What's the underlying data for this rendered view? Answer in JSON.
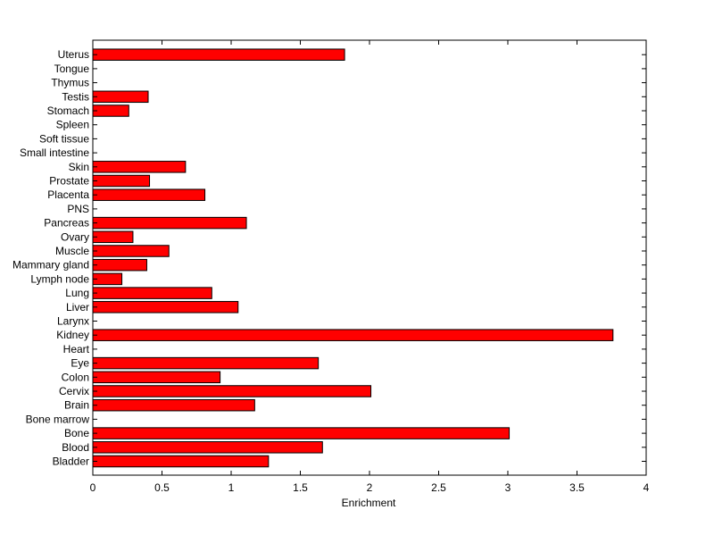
{
  "chart_data": {
    "type": "bar",
    "orientation": "horizontal",
    "title": "",
    "xlabel": "Enrichment",
    "ylabel": "",
    "xlim": [
      0,
      4
    ],
    "xticks": [
      "0",
      "0.5",
      "1",
      "1.5",
      "2",
      "2.5",
      "3",
      "3.5",
      "4"
    ],
    "grid": false,
    "legend": "none",
    "bar_color": "#ff0000",
    "categories": [
      "Bladder",
      "Blood",
      "Bone",
      "Bone marrow",
      "Brain",
      "Cervix",
      "Colon",
      "Eye",
      "Heart",
      "Kidney",
      "Larynx",
      "Liver",
      "Lung",
      "Lymph node",
      "Mammary gland",
      "Muscle",
      "Ovary",
      "Pancreas",
      "PNS",
      "Placenta",
      "Prostate",
      "Skin",
      "Small intestine",
      "Soft tissue",
      "Spleen",
      "Stomach",
      "Testis",
      "Thymus",
      "Tongue",
      "Uterus"
    ],
    "values": [
      1.27,
      1.66,
      3.01,
      0,
      1.17,
      2.01,
      0.92,
      1.63,
      0,
      3.76,
      0,
      1.05,
      0.86,
      0.21,
      0.39,
      0.55,
      0.29,
      1.11,
      0,
      0.81,
      0.41,
      0.67,
      0,
      0,
      0,
      0.26,
      0.4,
      0,
      0,
      1.82
    ]
  }
}
